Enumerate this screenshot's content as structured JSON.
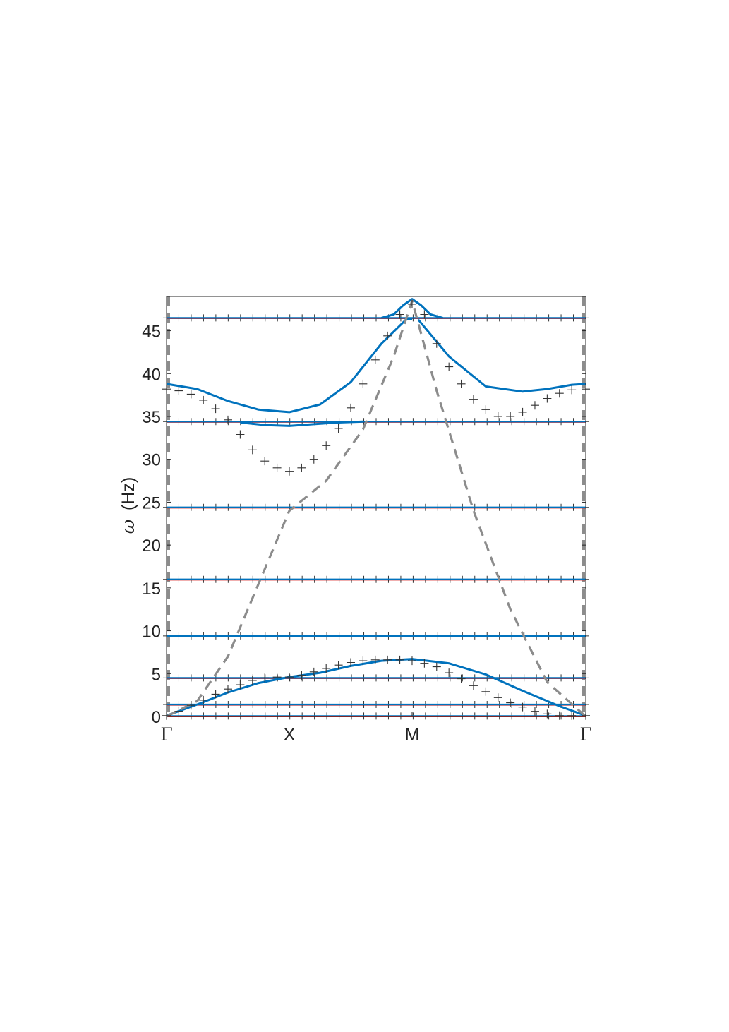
{
  "chart_data": {
    "type": "line",
    "title": "",
    "xlabel": "",
    "ylabel": "(Hz)",
    "ylabel_symbol": "ω",
    "xlim": [
      0,
      3.414
    ],
    "ylim": [
      0,
      49
    ],
    "x_ticks": [
      {
        "label": "Γ",
        "value": 0
      },
      {
        "label": "X",
        "value": 1
      },
      {
        "label": "M",
        "value": 2
      },
      {
        "label": "Γ",
        "value": 3.414
      }
    ],
    "y_ticks": [
      0,
      5,
      10,
      15,
      20,
      25,
      30,
      35,
      40,
      45
    ],
    "grid": false,
    "legend": "none",
    "colors": {
      "solid": "#0072BD",
      "dashed": "#8c8c8c",
      "markers": "#333333",
      "flat_marks": "#d62728"
    },
    "series": [
      {
        "style": "solid",
        "x": [
          0,
          1,
          2,
          3.414
        ],
        "y": [
          0.05,
          0.05,
          0.05,
          0.05
        ]
      },
      {
        "style": "solid",
        "x": [
          0,
          1,
          2,
          3.414
        ],
        "y": [
          1.4,
          1.4,
          1.4,
          1.4
        ]
      },
      {
        "style": "solid",
        "x": [
          0,
          1,
          2,
          3.414
        ],
        "y": [
          4.5,
          4.5,
          4.5,
          4.5
        ]
      },
      {
        "style": "solid",
        "x": [
          0,
          1,
          2,
          3.414
        ],
        "y": [
          9.4,
          9.4,
          9.4,
          9.4
        ]
      },
      {
        "style": "solid",
        "x": [
          0,
          1,
          2,
          3.414
        ],
        "y": [
          16.0,
          16.0,
          16.0,
          16.0
        ]
      },
      {
        "style": "solid",
        "x": [
          0,
          1,
          2,
          3.414
        ],
        "y": [
          24.4,
          24.4,
          24.4,
          24.4
        ]
      },
      {
        "style": "solid",
        "x": [
          0,
          1,
          2,
          3.414
        ],
        "y": [
          34.4,
          34.4,
          34.4,
          34.4
        ]
      },
      {
        "style": "solid",
        "x": [
          0,
          1,
          2,
          3.414
        ],
        "y": [
          46.5,
          46.5,
          46.5,
          46.5
        ]
      },
      {
        "style": "solid",
        "x": [
          0,
          0.25,
          0.5,
          0.75,
          1.0,
          1.25,
          1.5,
          1.75,
          2.0,
          2.3,
          2.6,
          2.9,
          3.2,
          3.414
        ],
        "y": [
          0.1,
          1.4,
          2.8,
          3.9,
          4.6,
          5.1,
          5.9,
          6.5,
          6.7,
          6.2,
          4.9,
          3.0,
          1.2,
          0.1
        ]
      },
      {
        "style": "solid",
        "x": [
          0,
          0.25,
          0.5,
          0.75,
          1.0,
          1.25,
          1.5,
          1.75,
          1.95,
          2.0
        ],
        "y": [
          38.8,
          38.2,
          36.8,
          35.8,
          35.5,
          36.4,
          39.0,
          43.5,
          46.3,
          46.4
        ]
      },
      {
        "style": "solid",
        "x": [
          2.05,
          2.3,
          2.6,
          2.9,
          3.1,
          3.3,
          3.414
        ],
        "y": [
          46.3,
          42.0,
          38.5,
          37.9,
          38.2,
          38.7,
          38.8
        ]
      },
      {
        "style": "solid",
        "x": [
          0.6,
          0.8,
          1.0,
          1.2,
          1.4,
          1.6
        ],
        "y": [
          34.3,
          34.0,
          33.9,
          34.1,
          34.3,
          34.4
        ]
      },
      {
        "style": "solid",
        "x": [
          1.75,
          1.85,
          1.93,
          2.0,
          2.07,
          2.15,
          2.25
        ],
        "y": [
          46.5,
          46.9,
          48.0,
          48.7,
          48.0,
          46.9,
          46.5
        ]
      },
      {
        "style": "dashed",
        "x": [
          0,
          0.25,
          0.5,
          0.75,
          1.0,
          1.3,
          1.6,
          1.85,
          2.0,
          2.2,
          2.5,
          2.8,
          3.1,
          3.414
        ],
        "y": [
          0,
          1.8,
          7.0,
          15.5,
          24.0,
          27.5,
          33.5,
          42.0,
          48.5,
          38.0,
          24.0,
          12.5,
          4.0,
          0
        ]
      },
      {
        "style": "markers",
        "x": [
          0.0,
          0.1,
          0.2,
          0.3,
          0.4,
          0.5,
          0.6,
          0.7,
          0.8,
          0.9,
          1.0,
          1.1,
          1.2,
          1.3,
          1.4,
          1.5,
          1.6,
          1.7,
          1.8,
          1.9,
          2.0
        ],
        "y": [
          38.2,
          38.0,
          37.6,
          36.9,
          35.9,
          34.6,
          32.9,
          31.1,
          29.8,
          29.0,
          28.6,
          29.0,
          30.0,
          31.6,
          33.6,
          36.0,
          38.8,
          41.6,
          44.4,
          46.9,
          48.1
        ]
      },
      {
        "style": "markers",
        "x": [
          2.1,
          2.2,
          2.3,
          2.4,
          2.5,
          2.6,
          2.7,
          2.8,
          2.9,
          3.0,
          3.1,
          3.2,
          3.3,
          3.414
        ],
        "y": [
          46.9,
          43.5,
          40.8,
          38.8,
          37.0,
          35.8,
          35.0,
          35.0,
          35.5,
          36.3,
          37.1,
          37.7,
          38.1,
          38.2
        ]
      },
      {
        "style": "markers",
        "x": [
          0.0,
          0.1,
          0.2,
          0.3,
          0.4,
          0.5,
          0.6,
          0.7,
          0.8,
          0.9,
          1.0,
          1.1,
          1.2,
          1.3,
          1.4,
          1.5,
          1.6,
          1.7,
          1.8,
          1.9,
          2.0,
          2.1,
          2.2,
          2.3,
          2.4,
          2.5,
          2.6,
          2.7,
          2.8,
          2.9,
          3.0,
          3.1,
          3.2,
          3.3,
          3.414
        ],
        "y": [
          0.1,
          0.6,
          1.3,
          1.9,
          2.6,
          3.2,
          3.7,
          4.2,
          4.5,
          4.6,
          4.6,
          4.8,
          5.2,
          5.6,
          6.0,
          6.3,
          6.5,
          6.6,
          6.6,
          6.6,
          6.5,
          6.2,
          5.8,
          5.1,
          4.4,
          3.6,
          2.9,
          2.2,
          1.6,
          1.1,
          0.6,
          0.3,
          0.1,
          0.1,
          0.1
        ]
      }
    ]
  }
}
